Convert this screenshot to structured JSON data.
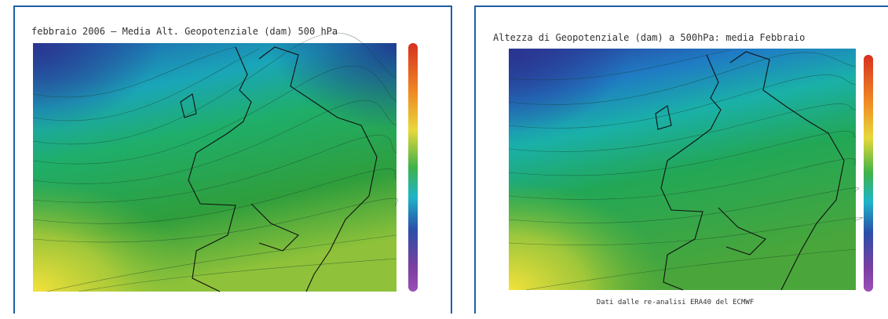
{
  "panels": [
    {
      "title": "febbraio 2006 – Media Alt. Geopotenziale (dam) 500 hPa"
    },
    {
      "title": "Altezza di Geopotenziale (dam) a 500hPa: media Febbraio",
      "caption": "Dati dalle re-analisi ERA40 del ECMWF"
    }
  ]
}
